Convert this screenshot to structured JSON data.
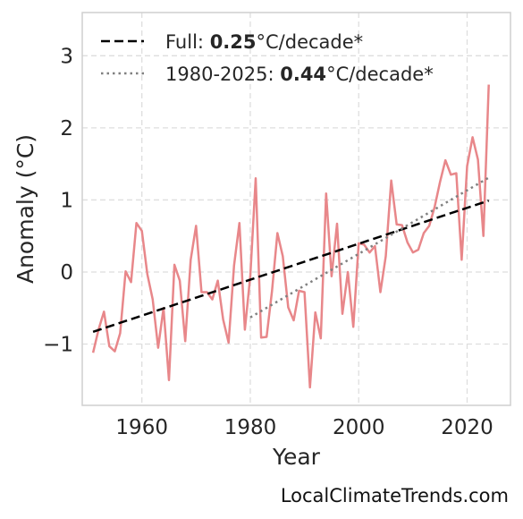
{
  "chart_data": {
    "type": "line",
    "xlabel": "Year",
    "ylabel": "Anomaly (°C)",
    "xlim": [
      1949,
      2028
    ],
    "ylim": [
      -1.85,
      3.6
    ],
    "x_ticks": [
      1960,
      1980,
      2000,
      2020
    ],
    "y_ticks": [
      3,
      2,
      1,
      0,
      -1
    ],
    "y_tick_labels": [
      "3",
      "2",
      "1",
      "0",
      "−1"
    ],
    "grid": true,
    "legend_position": "top-left",
    "series": [
      {
        "style": "solid",
        "color": "#e8878a",
        "x": [
          1951,
          1952,
          1953,
          1954,
          1955,
          1956,
          1957,
          1958,
          1959,
          1960,
          1961,
          1962,
          1963,
          1964,
          1965,
          1966,
          1967,
          1968,
          1969,
          1970,
          1971,
          1972,
          1973,
          1974,
          1975,
          1976,
          1977,
          1978,
          1979,
          1980,
          1981,
          1982,
          1983,
          1984,
          1985,
          1986,
          1987,
          1988,
          1989,
          1990,
          1991,
          1992,
          1993,
          1994,
          1995,
          1996,
          1997,
          1998,
          1999,
          2000,
          2001,
          2002,
          2003,
          2004,
          2005,
          2006,
          2007,
          2008,
          2009,
          2010,
          2011,
          2012,
          2013,
          2014,
          2015,
          2016,
          2017,
          2018,
          2019,
          2020,
          2021,
          2022,
          2023,
          2024
        ],
        "y": [
          -1.12,
          -0.8,
          -0.55,
          -1.03,
          -1.1,
          -0.85,
          0.01,
          -0.14,
          0.68,
          0.57,
          -0.03,
          -0.38,
          -1.05,
          -0.5,
          -1.5,
          0.1,
          -0.12,
          -0.96,
          0.17,
          0.64,
          -0.28,
          -0.28,
          -0.38,
          -0.12,
          -0.66,
          -0.98,
          0.09,
          0.68,
          -0.8,
          -0.05,
          1.3,
          -0.91,
          -0.9,
          -0.27,
          0.54,
          0.22,
          -0.49,
          -0.67,
          -0.26,
          -0.28,
          -1.6,
          -0.56,
          -0.92,
          1.09,
          -0.06,
          0.67,
          -0.58,
          0.0,
          -0.76,
          0.4,
          0.38,
          0.27,
          0.36,
          -0.28,
          0.22,
          1.27,
          0.66,
          0.65,
          0.41,
          0.27,
          0.31,
          0.54,
          0.64,
          0.9,
          1.25,
          1.55,
          1.35,
          1.37,
          0.17,
          1.47,
          1.87,
          1.56,
          0.5,
          2.6
        ]
      },
      {
        "name": "Full",
        "style": "dashed",
        "color": "#000000",
        "x": [
          1951,
          2024
        ],
        "y": [
          -0.83,
          0.99
        ],
        "trend_value": "0.25",
        "unit": "°C/decade*"
      },
      {
        "name": "1980-2025",
        "style": "dotted",
        "color": "#808080",
        "x": [
          1980,
          2024
        ],
        "y": [
          -0.63,
          1.31
        ],
        "trend_value": "0.44",
        "unit": "°C/decade*"
      }
    ]
  },
  "credit": "LocalClimateTrends.com"
}
